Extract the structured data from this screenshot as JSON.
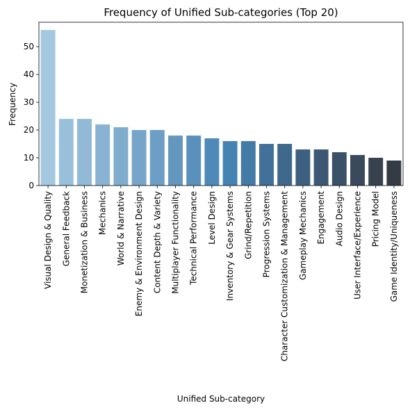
{
  "chart_data": {
    "type": "bar",
    "title": "Frequency of Unified Sub-categories (Top 20)",
    "xlabel": "Unified Sub-category",
    "ylabel": "Frequency",
    "ylim": [
      0,
      58.8
    ],
    "yticks": [
      0,
      10,
      20,
      30,
      40,
      50
    ],
    "grid": false,
    "categories": [
      "Visual Design & Quality",
      "General Feedback",
      "Monetization & Business",
      "Mechanics",
      "World & Narrative",
      "Enemy & Environment Design",
      "Content Depth & Variety",
      "Multiplayer Functionality",
      "Technical Performance",
      "Level Design",
      "Inventory & Gear Systems",
      "Grind/Repetition",
      "Progression Systems",
      "Character Customization & Management",
      "Gameplay Mechanics",
      "Engagement",
      "Audio Design",
      "User Interface/Experience",
      "Pricing Model",
      "Game Identity/Uniqueness"
    ],
    "values": [
      56,
      24,
      24,
      22,
      21,
      20,
      20,
      18,
      18,
      17,
      16,
      16,
      15,
      15,
      13,
      13,
      12,
      11,
      10,
      9
    ],
    "colors": [
      "#a3c8df",
      "#99c0db",
      "#92bad7",
      "#89b3d2",
      "#80acce",
      "#76a5c9",
      "#6d9ec5",
      "#6497bf",
      "#5a91bc",
      "#4f89b8",
      "#4583b3",
      "#437aa6",
      "#41719a",
      "#3f688d",
      "#3d6080",
      "#3c5874",
      "#3b5167",
      "#3a495b",
      "#38424f",
      "#353b43"
    ]
  }
}
